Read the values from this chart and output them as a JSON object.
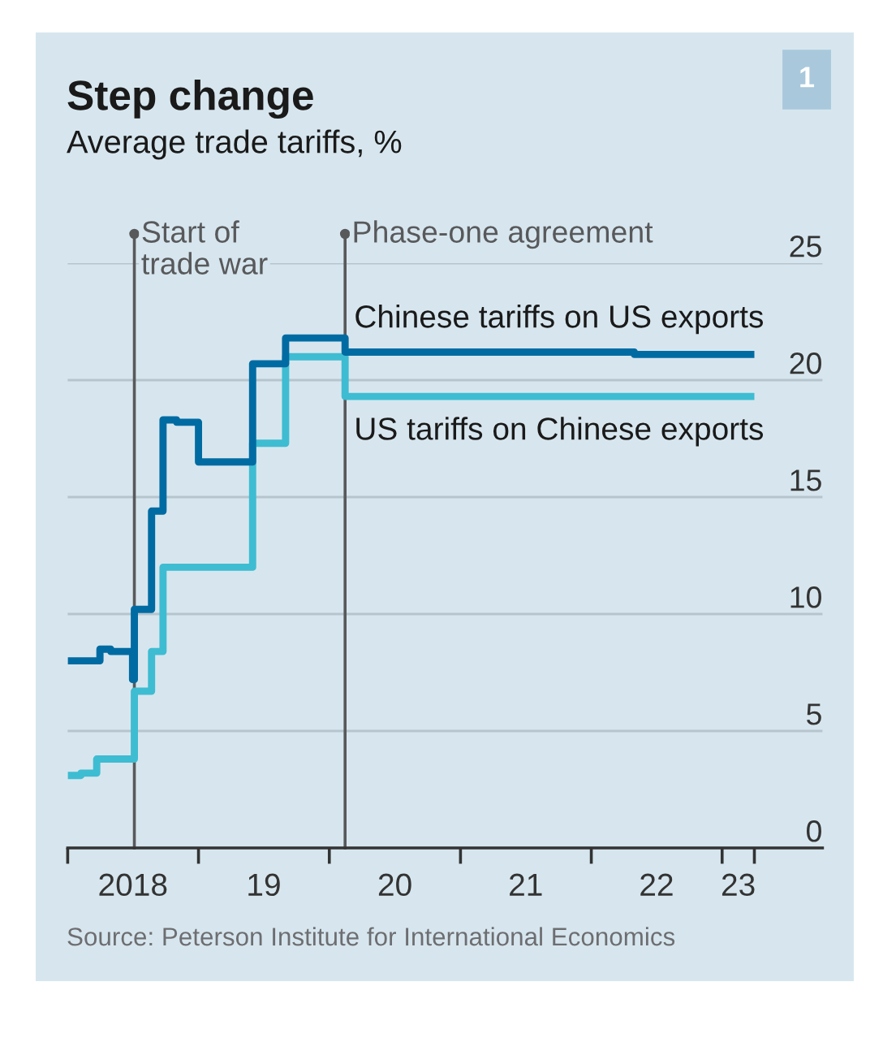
{
  "chart_data": {
    "type": "step",
    "title": "Step change",
    "subtitle": "Average trade tariffs, %",
    "series": [
      {
        "name": "US tariffs on Chinese exports",
        "color": "#3ebcd2",
        "x": [
          "2018-01-01",
          "2018-02-07",
          "2018-03-23",
          "2018-07-06",
          "2018-08-23",
          "2018-09-24",
          "2019-06-01",
          "2019-09-01",
          "2020-02-14",
          "2023-04-01"
        ],
        "values": [
          3.1,
          3.2,
          3.8,
          6.7,
          8.4,
          12.0,
          17.3,
          21.0,
          19.3,
          19.3
        ]
      },
      {
        "name": "Chinese tariffs on US exports",
        "color": "#006ba2",
        "x": [
          "2018-01-01",
          "2018-04-01",
          "2018-05-01",
          "2018-07-01",
          "2018-07-06",
          "2018-08-23",
          "2018-09-24",
          "2018-11-01",
          "2019-01-01",
          "2019-06-01",
          "2019-09-01",
          "2020-02-14",
          "2022-05-01",
          "2023-04-01"
        ],
        "values": [
          8.0,
          8.5,
          8.4,
          7.2,
          10.2,
          14.4,
          18.3,
          18.2,
          16.5,
          20.7,
          21.8,
          21.2,
          21.1,
          21.1
        ]
      }
    ],
    "xlim": [
      "2018-01-01",
      "2023-10-08"
    ],
    "xticks": [
      {
        "value": "2018-01-01",
        "label": null
      },
      {
        "value": "2018-07-02",
        "label": "2018"
      },
      {
        "value": "2019-01-01",
        "label": null
      },
      {
        "value": "2019-07-02",
        "label": "19"
      },
      {
        "value": "2020-01-01",
        "label": null
      },
      {
        "value": "2020-07-02",
        "label": "20"
      },
      {
        "value": "2021-01-01",
        "label": null
      },
      {
        "value": "2021-07-02",
        "label": "21"
      },
      {
        "value": "2022-01-01",
        "label": null
      },
      {
        "value": "2022-07-02",
        "label": "22"
      },
      {
        "value": "2023-01-01",
        "label": null
      },
      {
        "value": "2023-02-15",
        "label": "23"
      },
      {
        "value": "2023-04-01",
        "label": null
      }
    ],
    "ylim": [
      0,
      25
    ],
    "yticks": [
      0,
      5,
      10,
      15,
      20,
      25
    ],
    "grid": "y",
    "ref_lines": [
      {
        "axis": "x",
        "value": "2018-07-06",
        "label": "Start of\ntrade war",
        "color": "#58595b"
      },
      {
        "axis": "x",
        "value": "2020-02-14",
        "label": "Phase-one agreement",
        "color": "#58595b"
      }
    ],
    "annotations": [
      "1",
      "Source: Peterson Institute for International Economics"
    ]
  }
}
